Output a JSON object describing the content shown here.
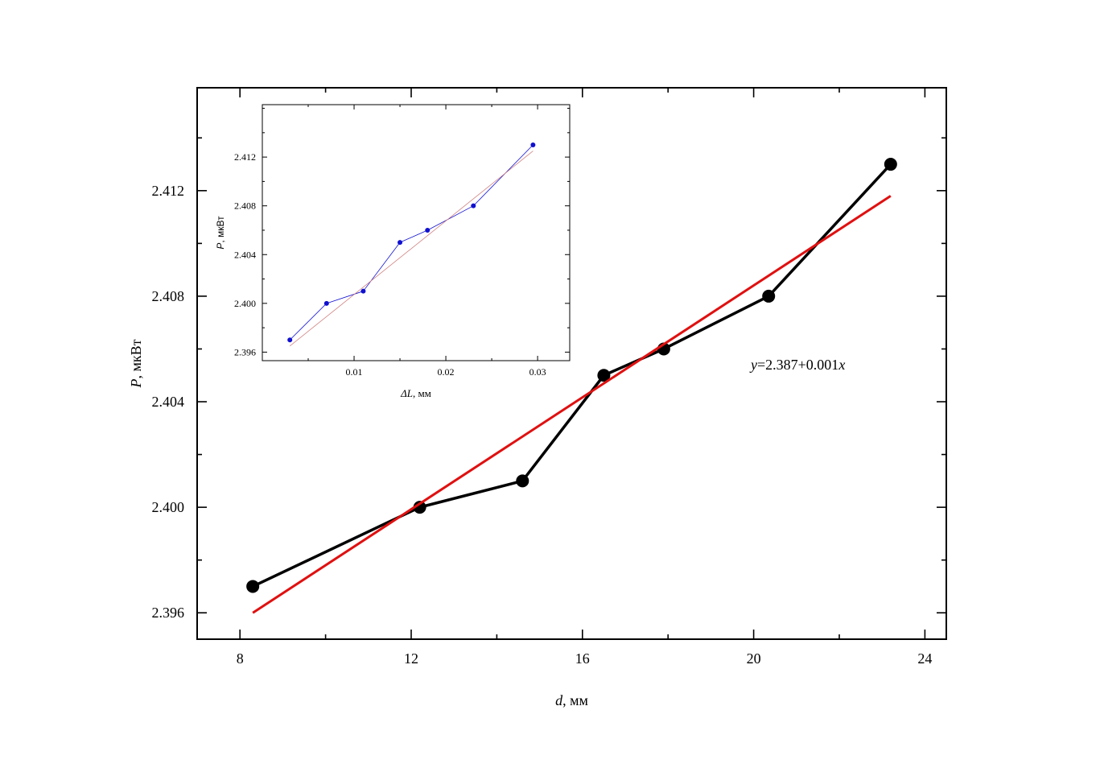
{
  "chart_data": [
    {
      "type": "scatter",
      "role": "main",
      "xlim": [
        7,
        24.5
      ],
      "ylim": [
        2.395,
        2.4159
      ],
      "xticks": [
        8,
        12,
        16,
        20,
        24
      ],
      "xtick_labels": [
        "8",
        "12",
        "16",
        "20",
        "24"
      ],
      "yticks": [
        2.396,
        2.4,
        2.404,
        2.408,
        2.412
      ],
      "ytick_labels": [
        "2.396",
        "2.400",
        "2.404",
        "2.408",
        "2.412"
      ],
      "xlabel_var": "d",
      "xlabel_unit": ", мм",
      "ylabel_var": "P",
      "ylabel_unit": ", мкВт",
      "grid": false,
      "series": [
        {
          "style": "markers+line",
          "color": "#000000",
          "x": [
            8.3,
            12.2,
            14.6,
            16.5,
            17.9,
            20.35,
            23.2
          ],
          "y": [
            2.397,
            2.4,
            2.401,
            2.405,
            2.406,
            2.408,
            2.413
          ]
        },
        {
          "style": "fit-line",
          "color": "#e01010",
          "x": [
            8.3,
            23.2
          ],
          "y": [
            2.396,
            2.4118
          ]
        }
      ],
      "annotation": {
        "var": "y",
        "text": "=2.387+0.001",
        "var2": "x"
      }
    },
    {
      "type": "scatter",
      "role": "inset",
      "xlim": [
        0,
        0.0335
      ],
      "ylim": [
        2.3953,
        2.4163
      ],
      "xticks": [
        0.01,
        0.02,
        0.03
      ],
      "xtick_labels": [
        "0.01",
        "0.02",
        "0.03"
      ],
      "yticks": [
        2.396,
        2.4,
        2.404,
        2.408,
        2.412
      ],
      "ytick_labels": [
        "2.396",
        "2.400",
        "2.404",
        "2.408",
        "2.412"
      ],
      "xlabel_var": "ΔL",
      "xlabel_unit": ", мм",
      "ylabel_var": "P",
      "ylabel_unit": ", мкВт",
      "grid": false,
      "series": [
        {
          "style": "markers+line",
          "color": "#1010d0",
          "x": [
            0.003,
            0.007,
            0.011,
            0.015,
            0.018,
            0.023,
            0.0295
          ],
          "y": [
            2.397,
            2.4,
            2.401,
            2.405,
            2.406,
            2.408,
            2.413
          ]
        },
        {
          "style": "fit-line",
          "color": "#d08080",
          "x": [
            0.003,
            0.0295
          ],
          "y": [
            2.3965,
            2.4125
          ]
        }
      ]
    }
  ]
}
